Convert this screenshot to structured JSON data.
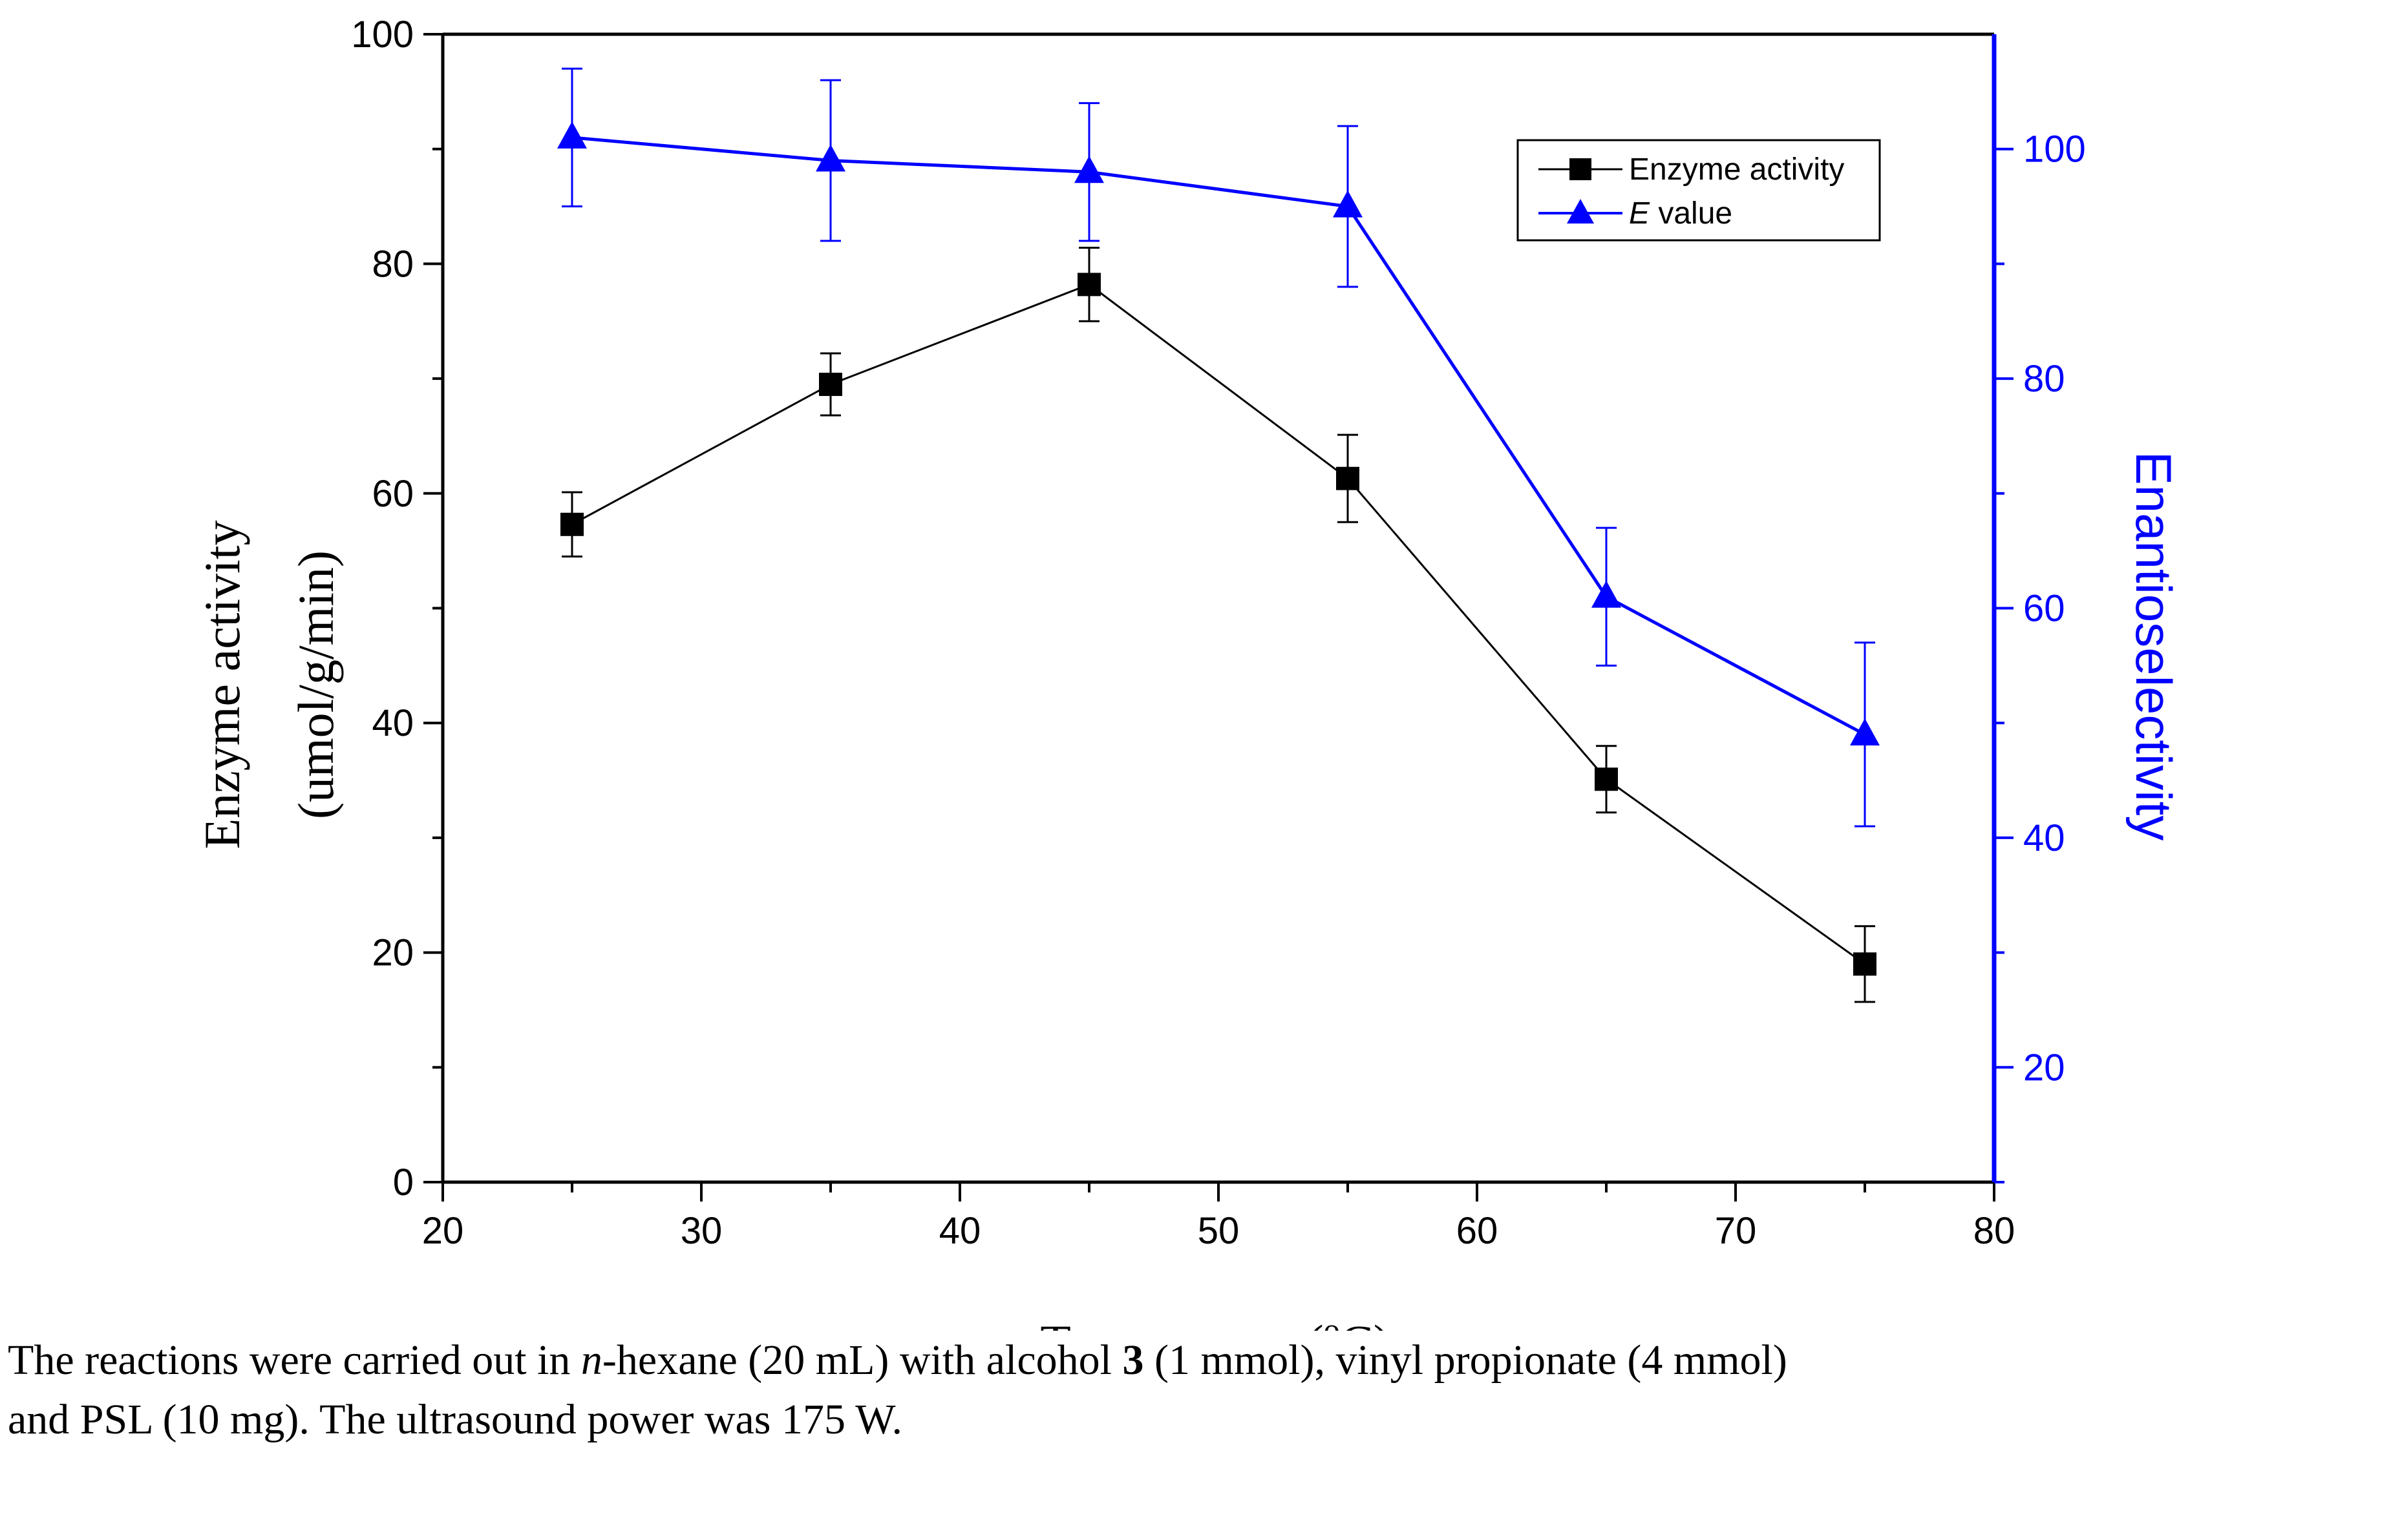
{
  "chart_data": {
    "type": "line",
    "x": [
      25,
      35,
      45,
      55,
      65,
      75
    ],
    "xlabel_main": "Temperatrue (",
    "xlabel_sup": "o",
    "xlabel_end": "C)",
    "xlim": [
      20,
      80
    ],
    "xticks": [
      20,
      30,
      40,
      50,
      60,
      70,
      80
    ],
    "ylabel_line1": "Enzyme activity",
    "ylabel_line2": "(umol/g/min)",
    "ylim": [
      0,
      100
    ],
    "yticks": [
      0,
      20,
      40,
      60,
      80,
      100
    ],
    "y2label": "Enantioselectivity",
    "y2lim": [
      10,
      110
    ],
    "y2ticks": [
      20,
      40,
      60,
      80,
      100
    ],
    "legend_position": "top-right",
    "series": [
      {
        "name": "Enzyme activity",
        "axis": "left",
        "marker": "square",
        "color": "#000000",
        "values": [
          57.3,
          69.5,
          78.2,
          61.3,
          35.1,
          19.0
        ],
        "errors": [
          2.8,
          2.7,
          3.2,
          3.8,
          2.9,
          3.3
        ]
      },
      {
        "name_italic": "E",
        "name_rest": " value",
        "axis": "right",
        "marker": "triangle",
        "color": "#0000FF",
        "values": [
          101,
          99,
          98,
          95,
          61,
          49
        ],
        "errors": [
          6,
          7,
          6,
          7,
          6,
          8
        ]
      }
    ]
  },
  "caption": {
    "l1_a": "The reactions were carried out in ",
    "l1_b": "n",
    "l1_c": "-hexane (20 mL) with alcohol ",
    "l1_d": "3",
    "l1_e": " (1 mmol), vinyl propionate (4 mmol)",
    "l2": "and PSL (10 mg). The ultrasound power was 175 W."
  }
}
